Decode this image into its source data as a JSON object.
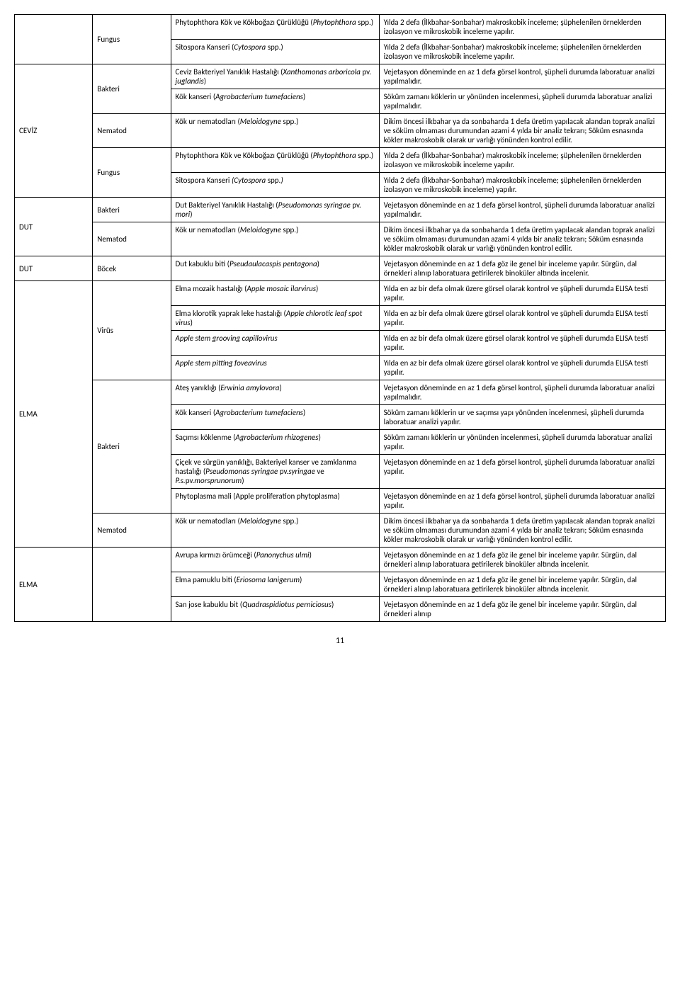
{
  "pageNumber": "11",
  "rows": [
    {
      "col1": "",
      "col1_rowspan": 2,
      "col2": "Fungus",
      "col2_rowspan": 2,
      "col3": "Phytophthora Kök ve Kökboğazı Çürüklüğü (<i>Phytophthora</i> spp.)",
      "col4": "Yılda 2 defa (İlkbahar-Sonbahar) makroskobik inceleme; şüphelenilen örneklerden izolasyon ve mikroskobik inceleme yapılır."
    },
    {
      "col3": "Sitospora Kanseri (<i>Cytospora</i> spp.)",
      "col4": "Yılda 2 defa (İlkbahar-Sonbahar) makroskobik inceleme; şüphelenilen örneklerden izolasyon ve mikroskobik inceleme yapılır."
    },
    {
      "col1": "CEVİZ",
      "col1_rowspan": 5,
      "col2": "Bakteri",
      "col2_rowspan": 2,
      "col3": "Ceviz Bakteriyel Yanıklık Hastalığı (<i>Xanthomonas arboricola</i> pv. <i>juglandis</i>)",
      "col4": "Vejetasyon döneminde en az 1 defa görsel kontrol, şüpheli durumda laboratuar analizi yapılmalıdır."
    },
    {
      "col3": "Kök kanseri (<i>Agrobacterium tumefaciens</i>)",
      "col4": "Söküm zamanı köklerin ur yönünden incelenmesi, şüpheli durumda laboratuar analizi yapılmalıdır."
    },
    {
      "col2": "Nematod",
      "col3": "Kök ur nematodları (<i>Meloidogyne</i> spp.)",
      "col4": "Dikim öncesi ilkbahar ya da sonbaharda 1 defa üretim yapılacak alandan toprak analizi ve söküm olmaması durumundan azami 4 yılda bir analiz tekrarı; Söküm esnasında kökler makroskobik olarak ur varlığı yönünden kontrol edilir."
    },
    {
      "col2": "Fungus",
      "col2_rowspan": 2,
      "col3": "Phytophthora Kök ve Kökboğazı Çürüklüğü (<i>Phytophthora</i> spp.)",
      "col4": "Yılda 2 defa (İlkbahar-Sonbahar) makroskobik inceleme; şüphelenilen örneklerden izolasyon ve mikroskobik inceleme yapılır."
    },
    {
      "col3": "Sitospora Kanseri <i>(Cytospora</i> spp.<i>)</i>",
      "col4": "Yılda 2 defa (İlkbahar-Sonbahar) makroskobik inceleme; şüphelenilen örneklerden izolasyon ve mikroskobik inceleme) yapılır."
    },
    {
      "col1": "DUT",
      "col1_rowspan": 2,
      "col2": "Bakteri",
      "col3": "Dut Bakteriyel Yanıklık Hastalığı (<i>Pseudomonas syringae</i> pv. <i>mori</i>)",
      "col4": "Vejetasyon döneminde en az 1 defa görsel kontrol, şüpheli durumda laboratuar analizi yapılmalıdır."
    },
    {
      "col2": "Nematod",
      "col3": "Kök ur nematodları (<i>Meloidogyne</i> spp.)",
      "col4": "Dikim öncesi ilkbahar ya da sonbaharda 1 defa üretim yapılacak alandan toprak analizi ve söküm olmaması durumundan azami 4 yılda bir analiz tekrarı; Söküm esnasında kökler makroskobik olarak ur varlığı yönünden kontrol edilir."
    },
    {
      "col1": "DUT",
      "col2": "Böcek",
      "col3": "Dut kabuklu biti (<i>Pseudaulacaspis pentagona</i>)",
      "col4": "Vejetasyon döneminde en az 1 defa göz ile genel bir inceleme yapılır. Sürgün, dal örnekleri alınıp laboratuara getirilerek binoküler altında incelenir."
    },
    {
      "col1": "ELMA",
      "col1_rowspan": 10,
      "col2": "Virüs",
      "col2_rowspan": 4,
      "col3": "Elma mozaik hastalığı (<i>Apple mosaic ilarvirus</i>)",
      "col4": "Yılda en az bir defa olmak üzere görsel olarak kontrol ve şüpheli durumda ELISA testi yapılır."
    },
    {
      "col3": "Elma klorotik yaprak leke hastalığı (<i>Apple chlorotic leaf spot virus</i>)",
      "col4": "Yılda en az bir defa olmak üzere görsel olarak kontrol ve şüpheli durumda ELISA testi yapılır."
    },
    {
      "col3": "<i>Apple stem grooving capillovirus</i>",
      "col4": "Yılda en az bir defa olmak üzere görsel olarak kontrol ve şüpheli durumda ELISA testi yapılır."
    },
    {
      "col3": "<i>Apple stem pitting foveavirus</i>",
      "col4": "Yılda en az bir defa olmak üzere görsel olarak kontrol ve şüpheli durumda ELISA testi yapılır."
    },
    {
      "col2": "Bakteri",
      "col2_rowspan": 5,
      "col3": "Ateş yanıklığı (<i>Erwinia amylovora</i>)",
      "col4": "Vejetasyon döneminde en az 1 defa görsel kontrol, şüpheli durumda laboratuar analizi yapılmalıdır."
    },
    {
      "col3": "Kök kanseri (<i>Agrobacterium tumefaciens</i>)",
      "col4": "Söküm zamanı köklerin ur ve saçımsı yapı yönünden incelenmesi, şüpheli durumda laboratuar analizi yapılır."
    },
    {
      "col3": "Saçımsı köklenme (<i>Agrobacterium rhizogenes</i>)",
      "col4": "Söküm zamanı köklerin ur yönünden incelenmesi, şüpheli durumda laboratuar analizi yapılır."
    },
    {
      "col3": "Çiçek ve sürgün yanıklığı, Bakteriyel kanser ve zamklanma hastalığı (<i>Pseudomonas syringae</i> pv.<i>syringae</i> ve <i>P.s.</i>pv.<i>morsprunorum</i>)",
      "col4": "Vejetasyon döneminde en az 1 defa görsel kontrol, şüpheli durumda laboratuar analizi yapılır."
    },
    {
      "col3": "Phytoplasma mali (Apple proliferation phytoplasma)",
      "col4": "Vejetasyon döneminde en az 1 defa görsel kontrol, şüpheli durumda laboratuar analizi yapılır."
    },
    {
      "col2": "Nematod",
      "col3": "Kök ur nematodları (<i>Meloidogyne</i> spp.)",
      "col4": "Dikim öncesi ilkbahar ya da sonbaharda 1 defa üretim yapılacak alandan toprak analizi ve söküm olmaması durumundan azami 4 yılda bir analiz tekrarı; Söküm esnasında kökler makroskobik olarak ur varlığı yönünden kontrol edilir."
    },
    {
      "col1": "ELMA",
      "col1_rowspan": 3,
      "col2": "",
      "col2_rowspan": 3,
      "col3": "Avrupa kırmızı örümceği (<i>Panonychus ulmi</i>)",
      "col4": "Vejetasyon döneminde en az 1 defa göz ile genel bir inceleme yapılır. Sürgün, dal örnekleri alınıp laboratuara getirilerek binoküler altında incelenir."
    },
    {
      "col3": "Elma pamuklu biti (<i>Eriosoma lanigerum</i>)",
      "col4": "Vejetasyon döneminde en az 1 defa göz ile genel bir inceleme yapılır. Sürgün, dal örnekleri alınıp laboratuara getirilerek binoküler altında incelenir."
    },
    {
      "col3": "San jose kabuklu bit (<i>Quadraspidiotus perniciosus</i>)",
      "col4": "Vejetasyon döneminde en az 1 defa göz ile genel bir inceleme yapılır. Sürgün, dal örnekleri alınıp"
    }
  ]
}
